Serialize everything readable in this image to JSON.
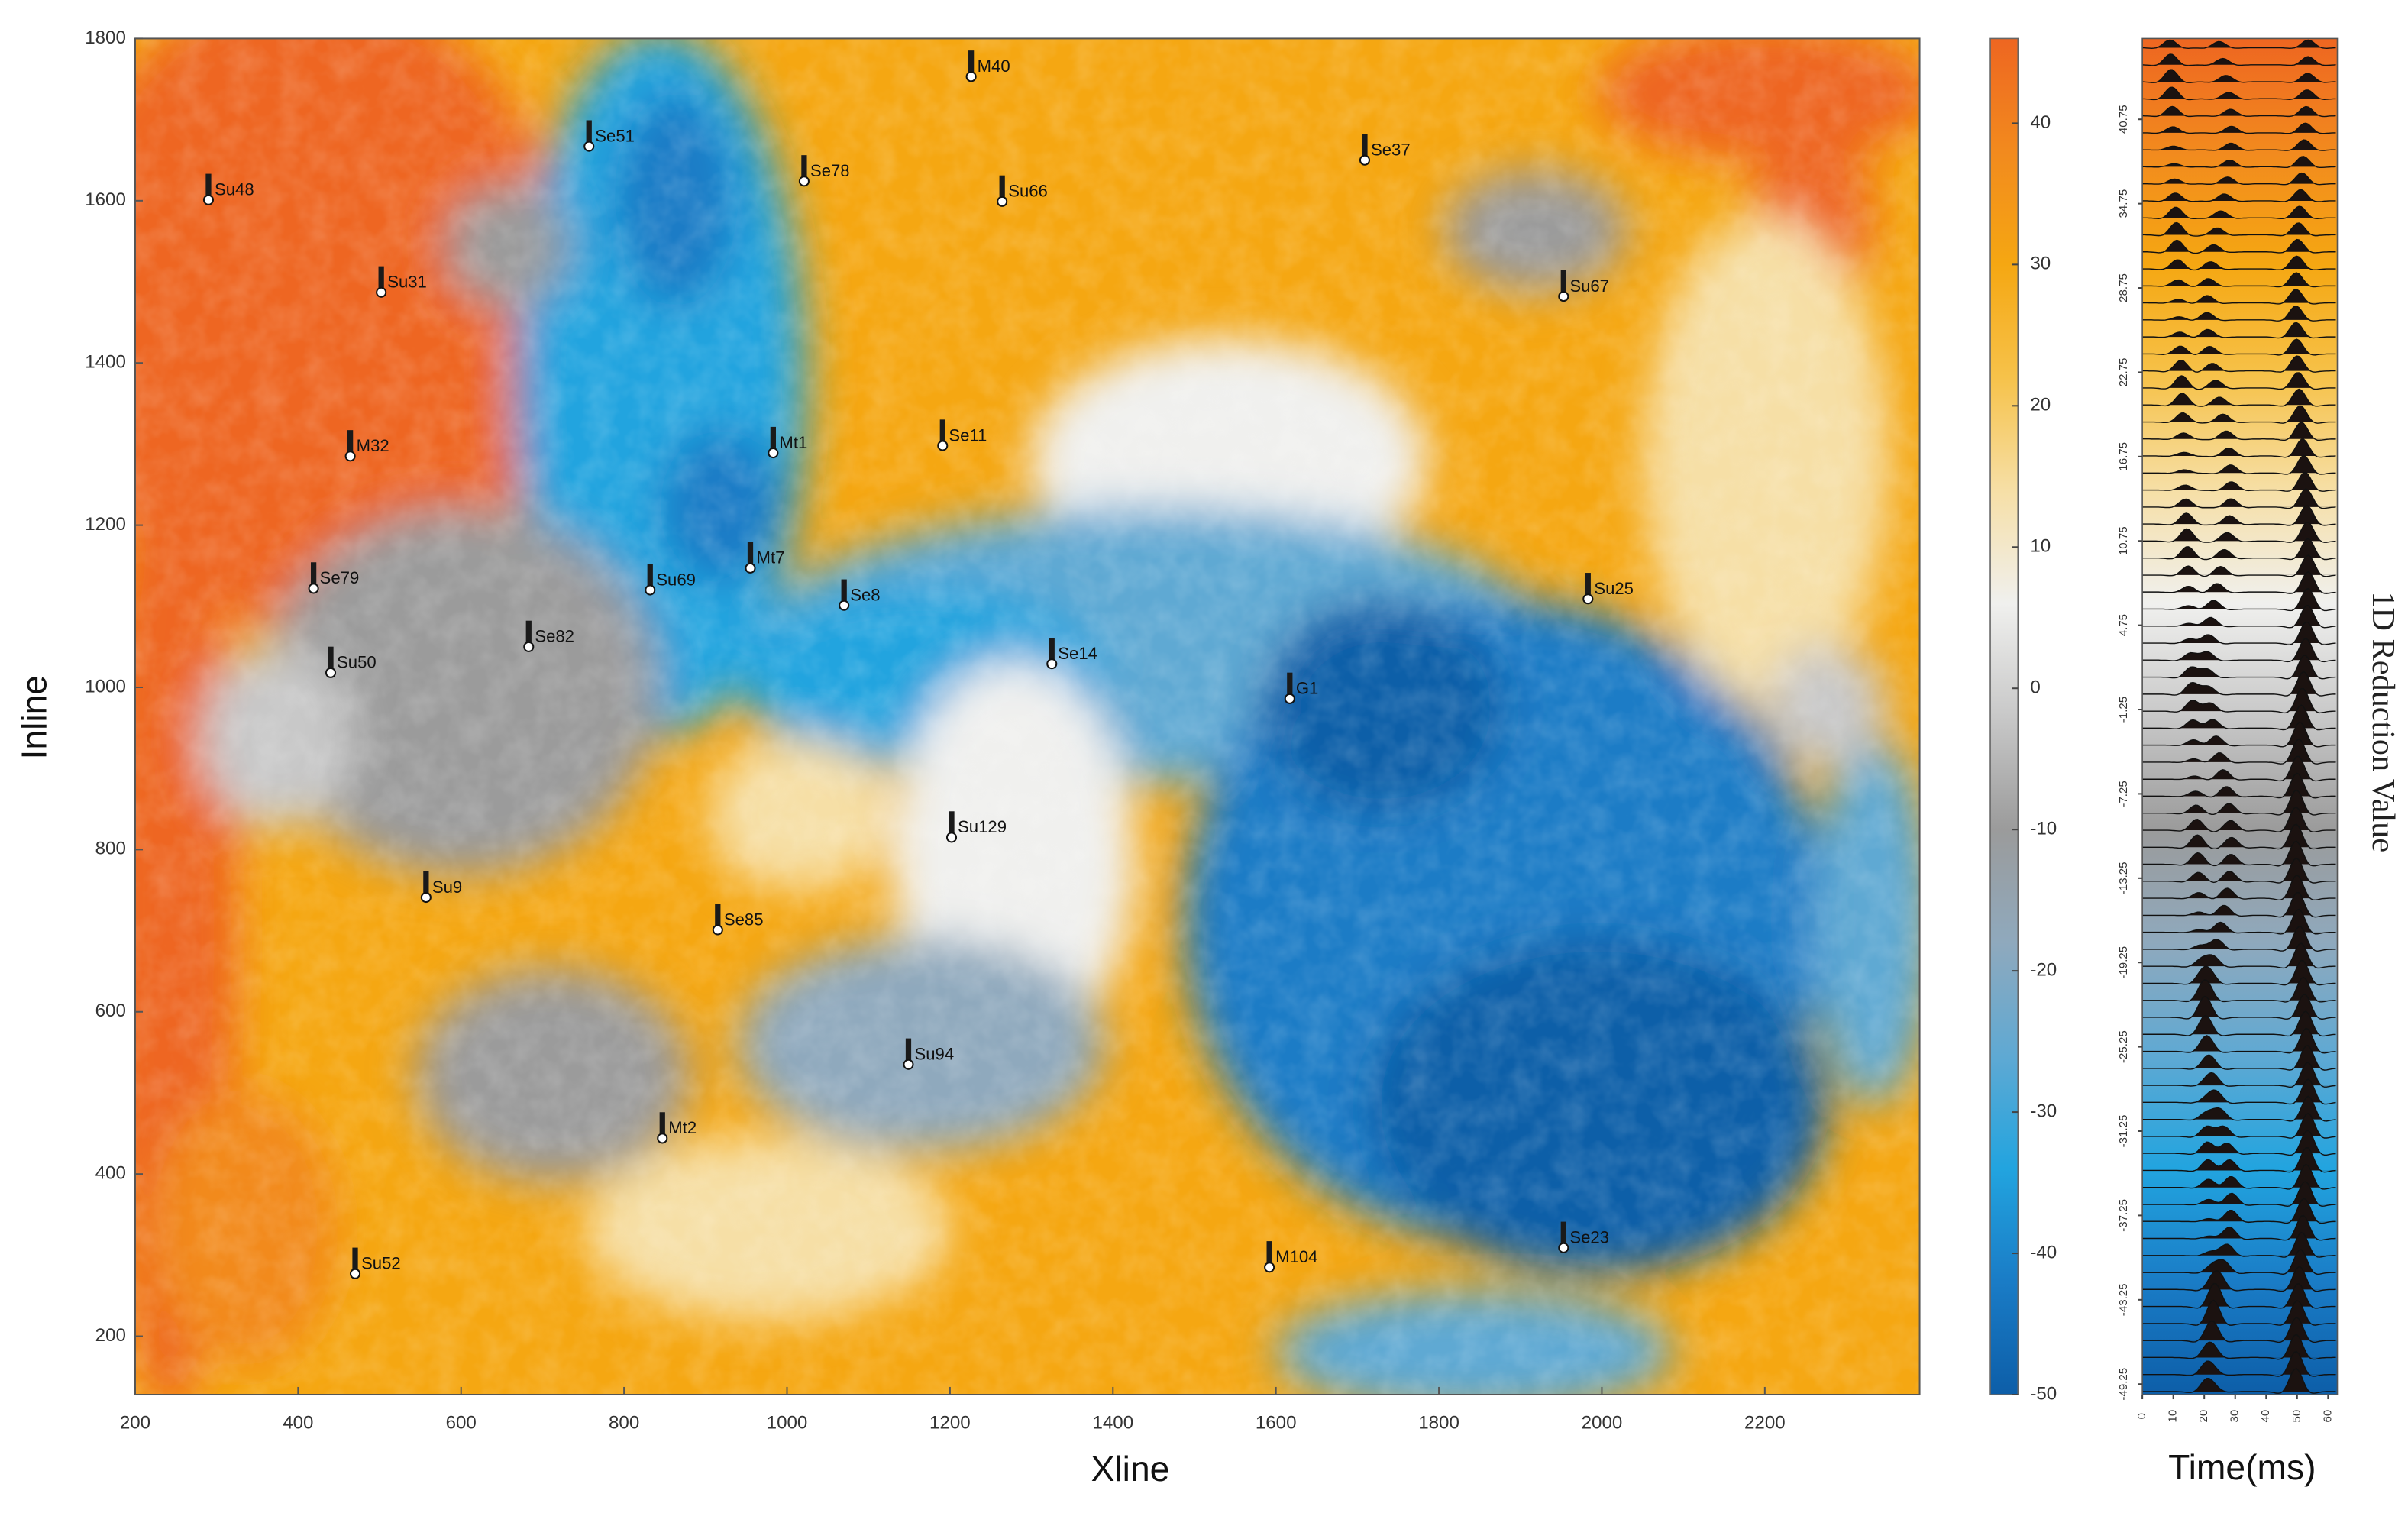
{
  "chart_data": [
    {
      "type": "scatter",
      "xlabel": "Xline",
      "ylabel": "Inline",
      "xlim": [
        200,
        2390
      ],
      "ylim": [
        128,
        1800
      ],
      "xticks": [
        200,
        400,
        600,
        800,
        1000,
        1200,
        1400,
        1600,
        1800,
        2000,
        2200
      ],
      "yticks": [
        200,
        400,
        600,
        800,
        1000,
        1200,
        1400,
        1600,
        1800
      ],
      "labels": [
        "M40",
        "Se51",
        "Su48",
        "Se78",
        "Su66",
        "Se37",
        "Su31",
        "Su67",
        "Se11",
        "Mt1",
        "M32",
        "Se79",
        "Su69",
        "Mt7",
        "Se8",
        "Su25",
        "Se82",
        "Su50",
        "Se14",
        "G1",
        "Su129",
        "Su9",
        "Se85",
        "Su94",
        "Mt2",
        "Se23",
        "M104",
        "Su52"
      ],
      "x": [
        1226,
        757,
        290,
        1021,
        1264,
        1709,
        502,
        1953,
        1191,
        983,
        464,
        419,
        832,
        955,
        1070,
        1983,
        683,
        440,
        1325,
        1617,
        1202,
        557,
        915,
        1149,
        847,
        1953,
        1592,
        470
      ],
      "y": [
        1753,
        1667,
        1601,
        1624,
        1599,
        1650,
        1487,
        1482,
        1298,
        1289,
        1285,
        1122,
        1120,
        1147,
        1101,
        1109,
        1050,
        1018,
        1029,
        986,
        815,
        741,
        701,
        535,
        444,
        309,
        285,
        277
      ],
      "clim": [
        -50,
        46
      ],
      "cticks": [
        -50,
        -40,
        -30,
        -20,
        -10,
        0,
        10,
        20,
        30,
        40
      ],
      "colormap": [
        "#0d5ea8",
        "#1a7cc6",
        "#22a4df",
        "#5fa9d3",
        "#8fa9bd",
        "#9b9b9b",
        "#c8c8c8",
        "#f0f0ee",
        "#f6dfa6",
        "#f6c24a",
        "#f5a712",
        "#f28a1e",
        "#ee6621"
      ]
    },
    {
      "type": "wiggle",
      "xlabel": "Time(ms)",
      "ylabel": "1D Reduction Value",
      "xlim": [
        0,
        63
      ],
      "xticks": [
        0,
        10,
        20,
        30,
        40,
        50,
        60
      ],
      "ylim": [
        -50,
        46.5
      ],
      "yticks": [
        40.75,
        34.75,
        28.75,
        22.75,
        16.75,
        10.75,
        4.75,
        -1.25,
        -7.25,
        -13.25,
        -19.25,
        -25.25,
        -31.25,
        -37.25,
        -43.25,
        -49.25
      ]
    }
  ]
}
